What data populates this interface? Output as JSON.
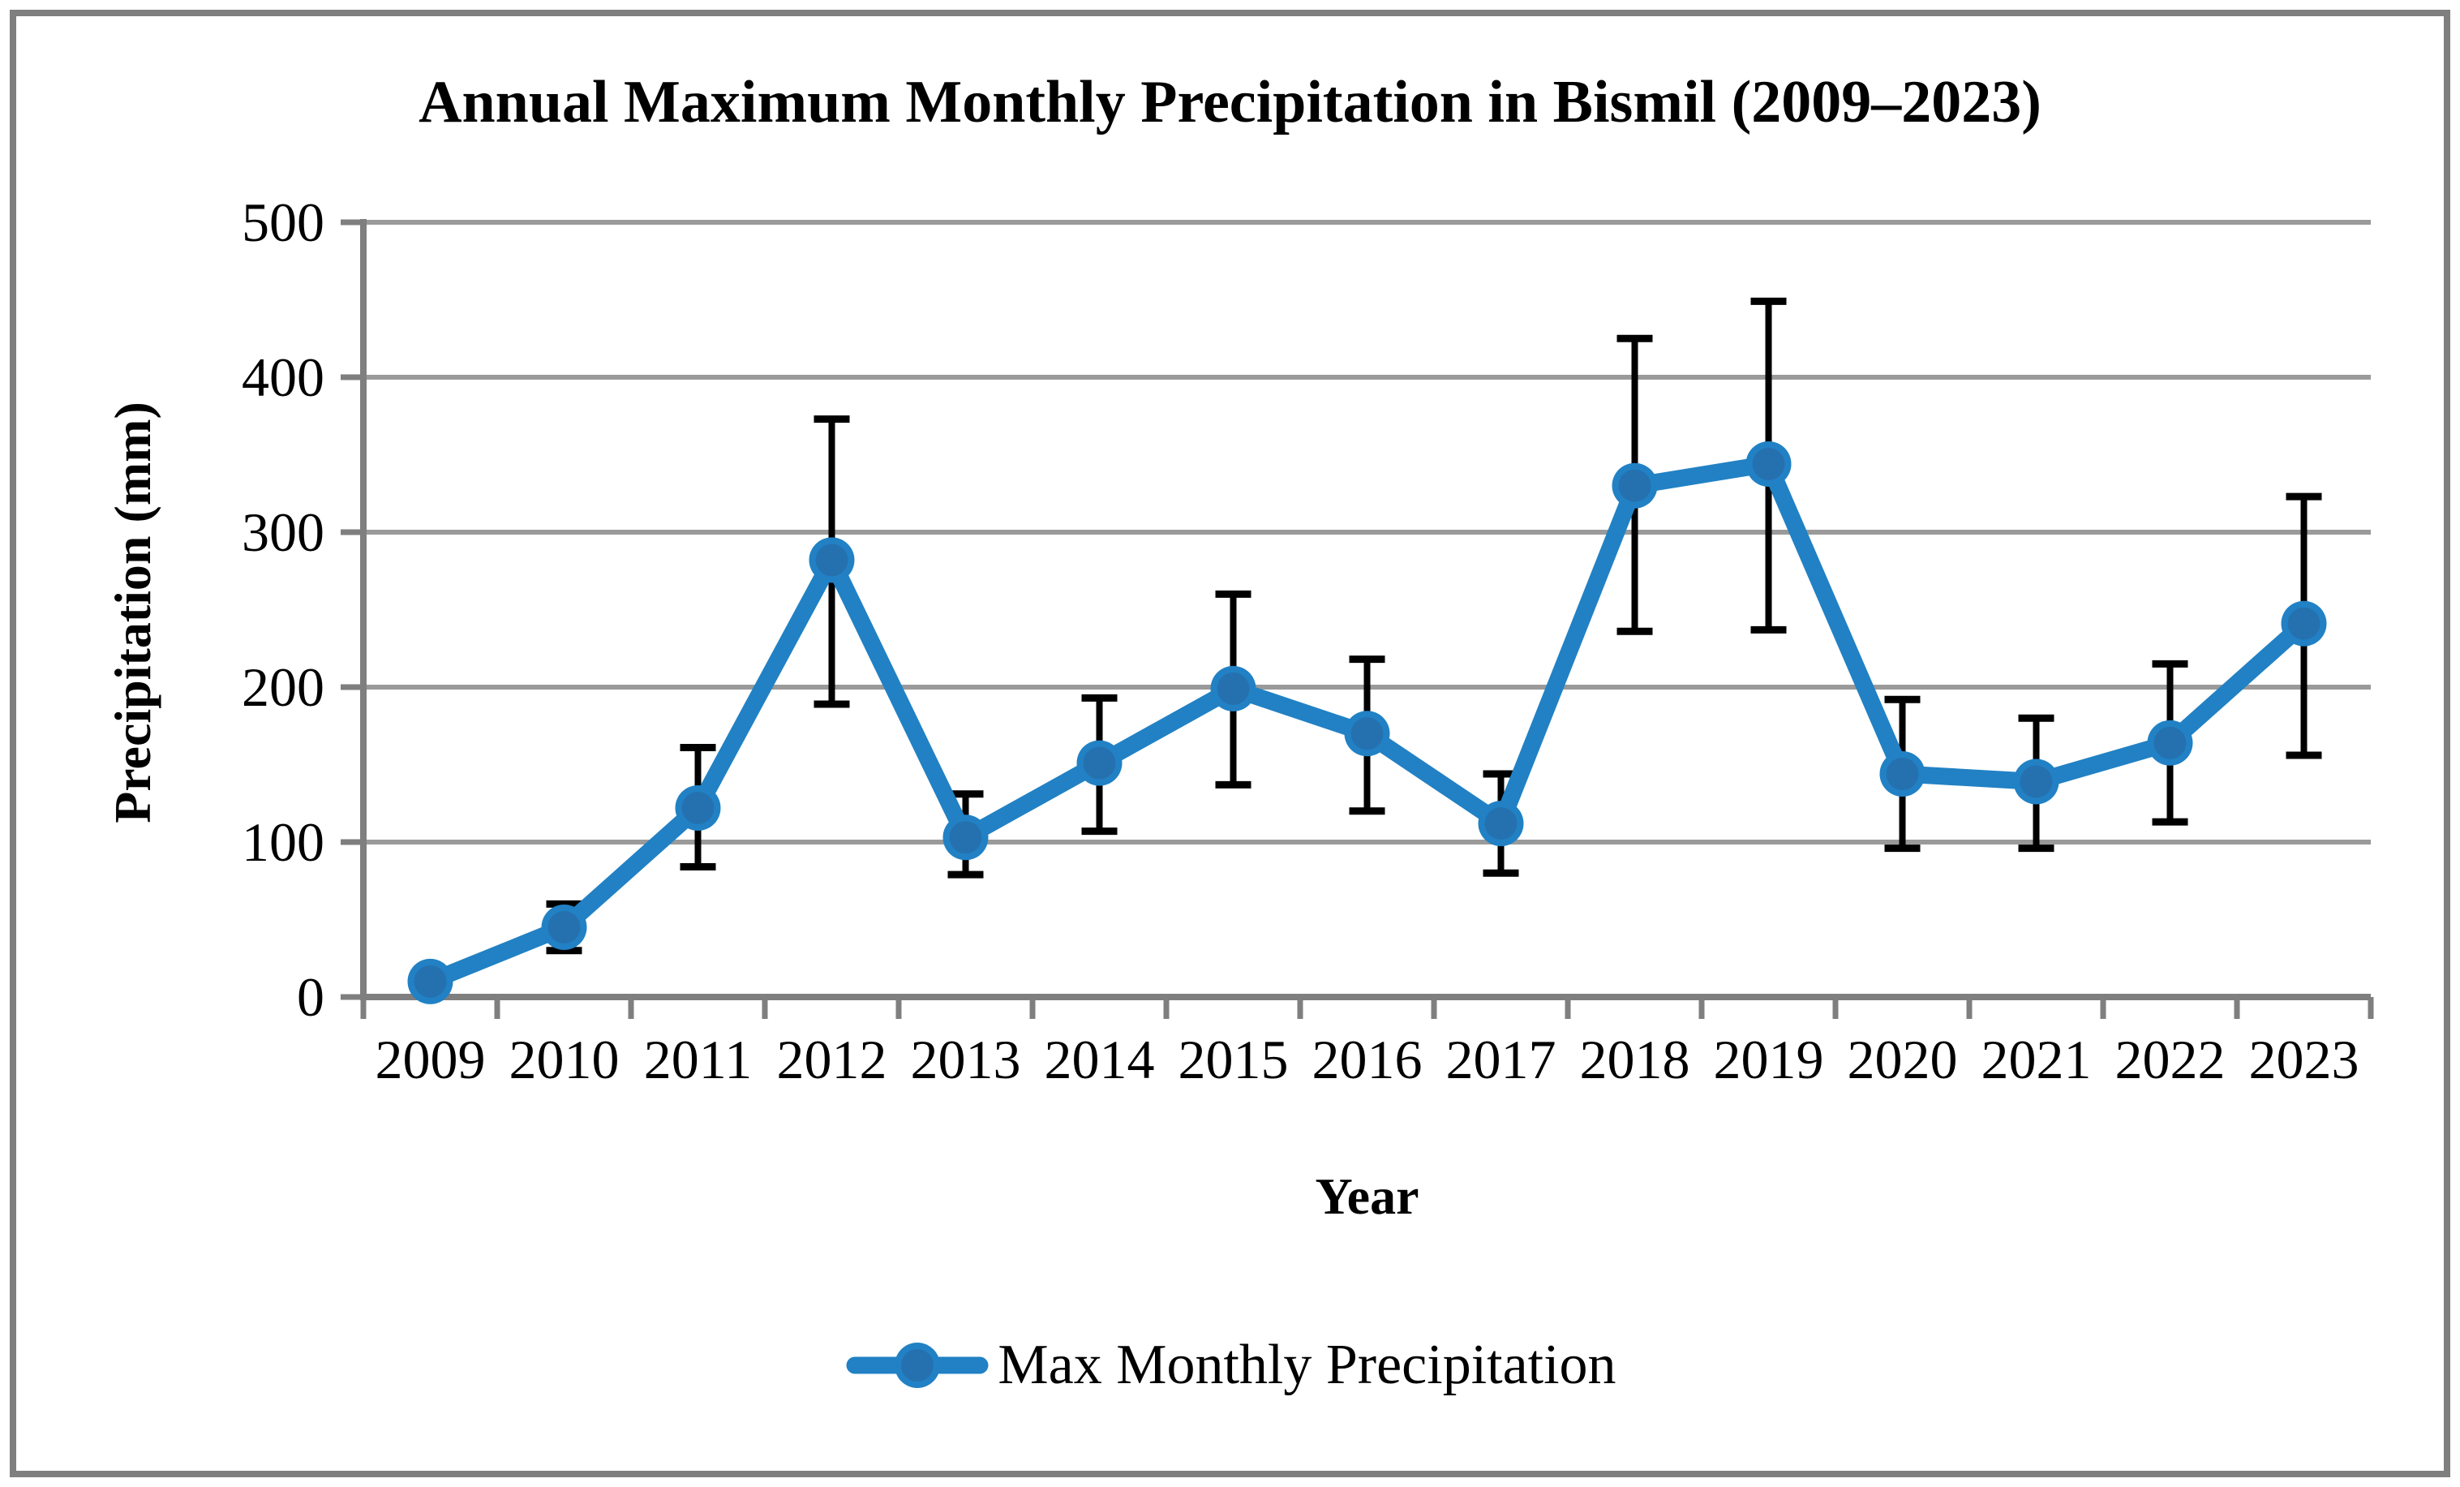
{
  "figure": {
    "title": "Annual Maximum Monthly Precipitation in Bismil (2009–2023)",
    "y_axis_title": "Precipitation (mm)",
    "x_axis_title": "Year",
    "legend_label": "Max Monthly Precipitation"
  },
  "colors": {
    "series_line": "#2181c4",
    "marker_inner": "#2571b0",
    "error_bar": "#000000",
    "gridline": "#9a9a9a",
    "axis": "#7f7f7f",
    "frame_border": "#7f7f7f",
    "text": "#000000"
  },
  "chart_data": {
    "type": "line",
    "title": "Annual Maximum Monthly Precipitation in Bismil (2009–2023)",
    "xlabel": "Year",
    "ylabel": "Precipitation (mm)",
    "categories": [
      "2009",
      "2010",
      "2011",
      "2012",
      "2013",
      "2014",
      "2015",
      "2016",
      "2017",
      "2018",
      "2019",
      "2020",
      "2021",
      "2022",
      "2023"
    ],
    "series": [
      {
        "name": "Max Monthly Precipitation",
        "values": [
          10,
          45,
          122,
          282,
          103,
          151,
          199,
          170,
          112,
          330,
          344,
          144,
          139,
          164,
          241
        ],
        "error_low": [
          10,
          30,
          84,
          189,
          79,
          107,
          137,
          120,
          80,
          236,
          237,
          96,
          96,
          113,
          156
        ],
        "error_high": [
          10,
          60,
          161,
          373,
          131,
          193,
          260,
          218,
          144,
          425,
          449,
          192,
          180,
          215,
          323
        ]
      }
    ],
    "ylim": [
      0,
      500
    ],
    "yticks": [
      0,
      100,
      200,
      300,
      400,
      500
    ],
    "grid": true,
    "legend_position": "bottom",
    "marker": "circle",
    "error_bars": true
  }
}
